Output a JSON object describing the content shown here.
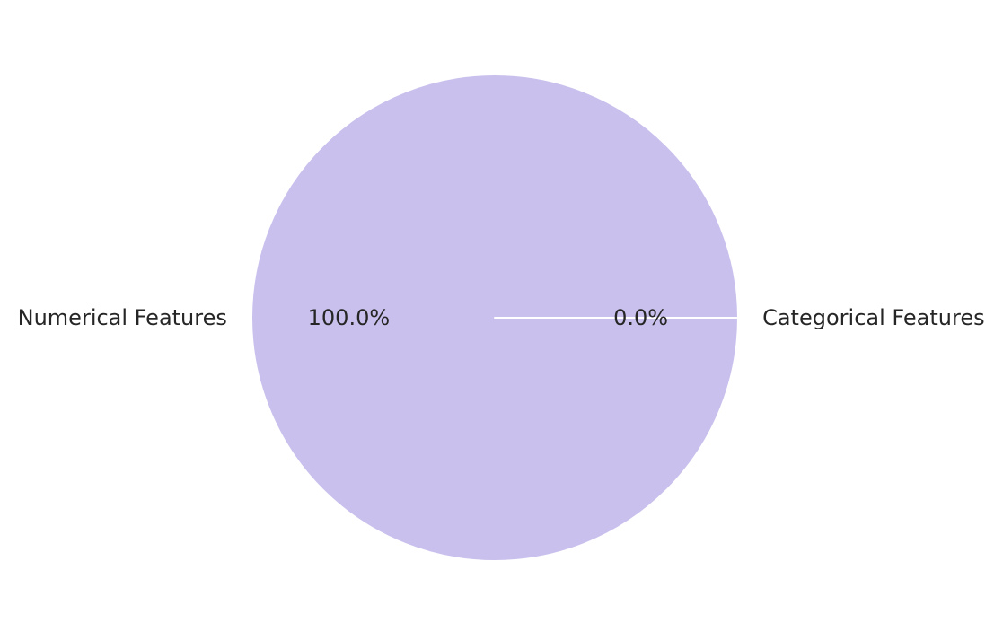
{
  "chart_data": {
    "type": "pie",
    "slices": [
      {
        "label": "Numerical Features",
        "value": 100.0,
        "pct_label": "100.0%",
        "color": "#c9c0ed"
      },
      {
        "label": "Categorical Features",
        "value": 0.0,
        "pct_label": "0.0%",
        "color": "#f4a582"
      }
    ],
    "wedge_edge_color": "#ffffff",
    "start_angle": 0,
    "direction": "counterclockwise",
    "title": "",
    "legend": "none"
  }
}
